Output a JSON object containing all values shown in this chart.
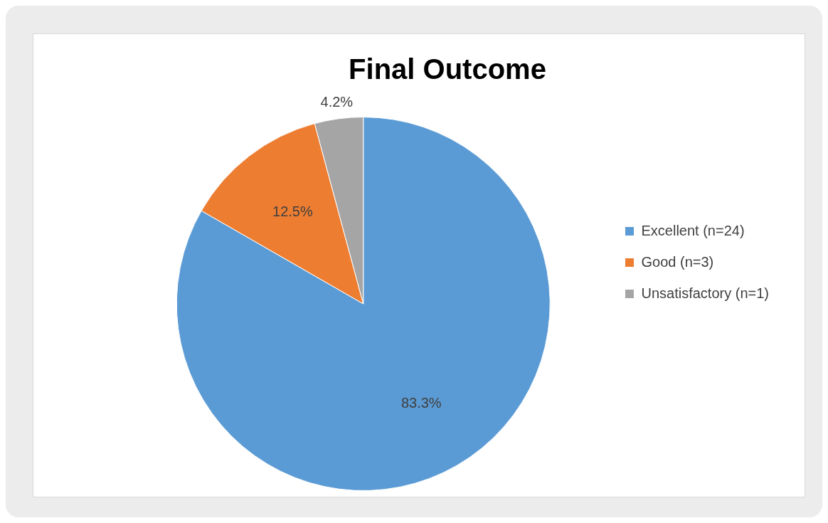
{
  "chart_data": {
    "type": "pie",
    "title": "Final Outcome",
    "categories": [
      "Excellent (n=24)",
      "Good (n=3)",
      "Unsatisfactory (n=1)"
    ],
    "values": [
      83.3,
      12.5,
      4.2
    ],
    "colors": [
      "#5b9bd5",
      "#ed7d31",
      "#a5a5a5"
    ],
    "value_labels": [
      "83.3%",
      "12.5%",
      "4.2%"
    ],
    "legend": "right"
  }
}
